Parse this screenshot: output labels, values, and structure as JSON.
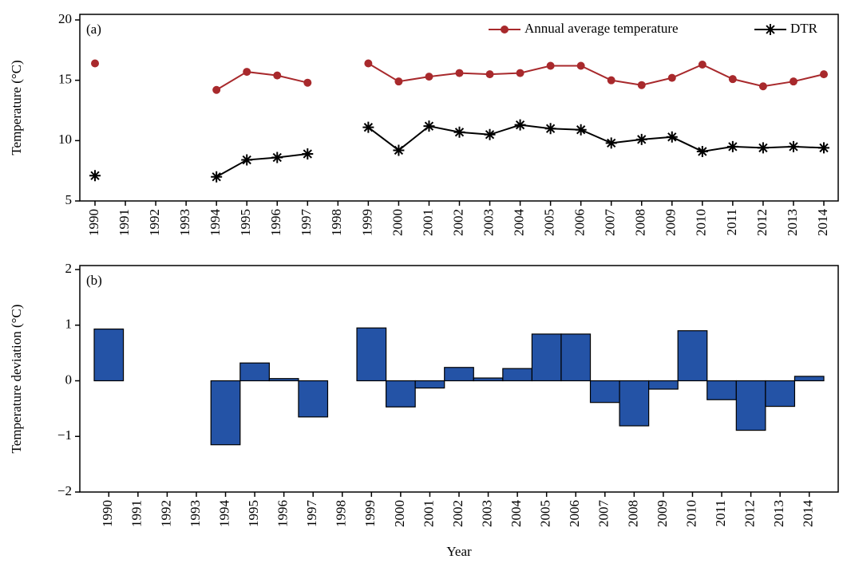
{
  "chart_data": [
    {
      "type": "line",
      "panel_label": "(a)",
      "y_label": "Temperature (°C)",
      "categories": [
        "1990",
        "1991",
        "1992",
        "1993",
        "1994",
        "1995",
        "1996",
        "1997",
        "1998",
        "1999",
        "2000",
        "2001",
        "2002",
        "2003",
        "2004",
        "2005",
        "2006",
        "2007",
        "2008",
        "2009",
        "2010",
        "2011",
        "2012",
        "2013",
        "2014"
      ],
      "series": [
        {
          "name": "Annual average temperature",
          "color": "#a8292c",
          "marker": "circle",
          "values": [
            16.4,
            null,
            null,
            null,
            14.2,
            15.7,
            15.4,
            14.8,
            null,
            16.4,
            14.9,
            15.3,
            15.6,
            15.5,
            15.6,
            16.2,
            16.2,
            15.0,
            14.6,
            15.2,
            16.3,
            15.1,
            14.5,
            14.9,
            15.5
          ]
        },
        {
          "name": "DTR",
          "color": "#000000",
          "marker": "asterisk",
          "values": [
            7.1,
            null,
            null,
            null,
            7.0,
            8.4,
            8.6,
            8.9,
            null,
            11.1,
            9.2,
            11.2,
            10.7,
            10.5,
            11.3,
            11.0,
            10.9,
            9.8,
            10.1,
            10.3,
            9.1,
            9.5,
            9.4,
            9.5,
            9.4
          ]
        }
      ],
      "ylim": [
        5,
        20
      ],
      "yticks": [
        5,
        10,
        15,
        20
      ],
      "legend": "top-right"
    },
    {
      "type": "bar",
      "panel_label": "(b)",
      "y_label": "Temperature deviation (°C)",
      "x_label": "Year",
      "categories": [
        "1990",
        "1991",
        "1992",
        "1993",
        "1994",
        "1995",
        "1996",
        "1997",
        "1998",
        "1999",
        "2000",
        "2001",
        "2002",
        "2003",
        "2004",
        "2005",
        "2006",
        "2007",
        "2008",
        "2009",
        "2010",
        "2011",
        "2012",
        "2013",
        "2014"
      ],
      "values": [
        0.93,
        null,
        null,
        null,
        -1.15,
        0.32,
        0.04,
        -0.65,
        null,
        0.95,
        -0.47,
        -0.13,
        0.24,
        0.05,
        0.22,
        0.84,
        0.84,
        -0.39,
        -0.81,
        -0.15,
        0.9,
        -0.34,
        -0.89,
        -0.46,
        0.08
      ],
      "color": "#2453a6",
      "ylim": [
        -2,
        2
      ],
      "yticks": [
        {
          "value": -2,
          "label": "−2"
        },
        {
          "value": -1,
          "label": "−1"
        },
        0,
        1,
        2
      ]
    }
  ]
}
